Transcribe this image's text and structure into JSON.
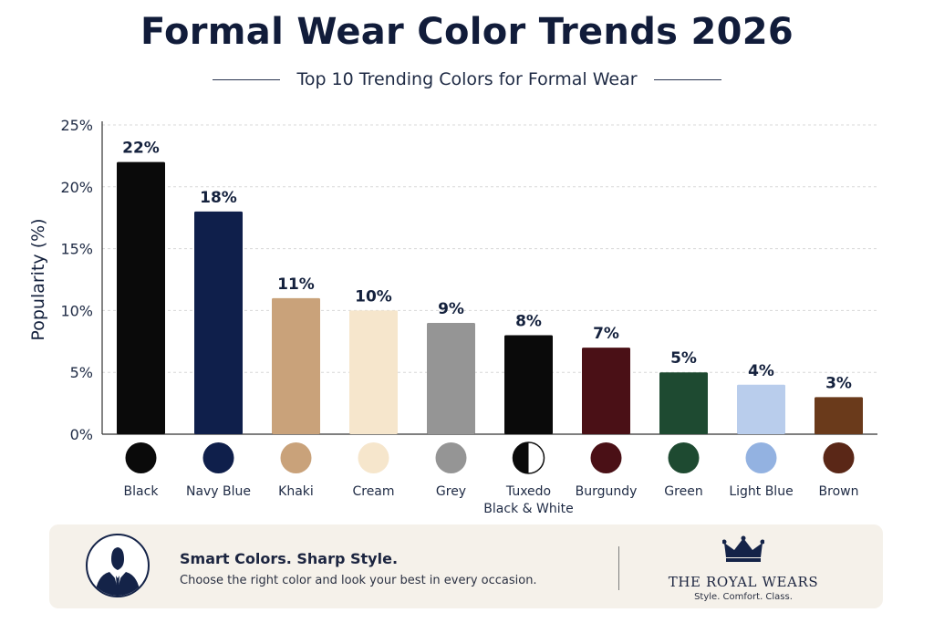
{
  "header": {
    "title": "Formal Wear Color Trends 2026",
    "subtitle": "Top 10 Trending Colors for Formal Wear"
  },
  "chart_data": {
    "type": "bar",
    "title": "Formal Wear Color Trends 2026",
    "subtitle": "Top 10 Trending Colors for Formal Wear",
    "xlabel": "",
    "ylabel": "Popularity (%)",
    "ylim": [
      0,
      25
    ],
    "yticks": [
      "0%",
      "5%",
      "10%",
      "15%",
      "20%",
      "25%"
    ],
    "ytick_values": [
      0,
      5,
      10,
      15,
      20,
      25
    ],
    "grid": "horizontal dashed",
    "categories": [
      "Black",
      "Navy Blue",
      "Khaki",
      "Cream",
      "Grey",
      "Tuxedo\nBlack & White",
      "Burgundy",
      "Green",
      "Light Blue",
      "Brown"
    ],
    "values": [
      22,
      18,
      11,
      10,
      9,
      8,
      7,
      5,
      4,
      3
    ],
    "value_labels": [
      "22%",
      "18%",
      "11%",
      "10%",
      "9%",
      "8%",
      "7%",
      "5%",
      "4%",
      "3%"
    ],
    "bar_colors": [
      "#0a0a0a",
      "#0f1f4b",
      "#c9a27a",
      "#f6e6cc",
      "#959595",
      "#0a0a0a",
      "#4a1016",
      "#1e4a31",
      "#b9cdec",
      "#6a3a1b"
    ],
    "swatch_colors": [
      "#0a0a0a",
      "#0f1f4b",
      "#c9a27a",
      "#f6e6cc",
      "#959595",
      "tuxedo",
      "#4a1016",
      "#1e4a31",
      "#93b2e1",
      "#5a2717"
    ]
  },
  "footer": {
    "headline": "Smart Colors. Sharp Style.",
    "text": "Choose the right color and look your best in every occasion.",
    "brand_name": "THE ROYAL WEARS",
    "brand_tagline": "Style. Comfort. Class.",
    "avatar_icon": "suited-man-icon",
    "crown_icon": "crown-icon"
  }
}
